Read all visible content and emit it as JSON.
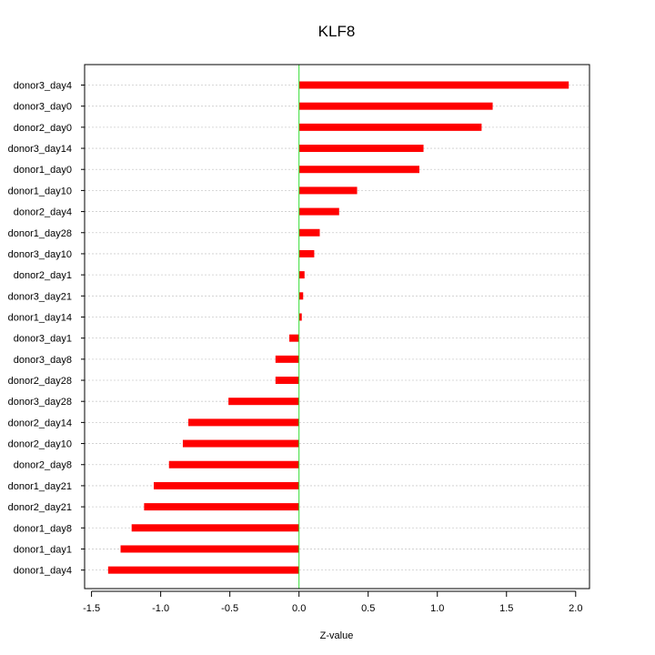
{
  "chart_data": {
    "type": "bar",
    "orientation": "horizontal",
    "title": "KLF8",
    "xlabel": "Z-value",
    "ylabel": "",
    "xlim": [
      -1.55,
      2.1
    ],
    "x_ticks": [
      -1.5,
      -1.0,
      -0.5,
      0.0,
      0.5,
      1.0,
      1.5,
      2.0
    ],
    "x_tick_labels": [
      "-1.5",
      "-1.0",
      "-0.5",
      "0.0",
      "0.5",
      "1.0",
      "1.5",
      "2.0"
    ],
    "grid": "horizontal dotted",
    "categories": [
      "donor3_day4",
      "donor3_day0",
      "donor2_day0",
      "donor3_day14",
      "donor1_day0",
      "donor1_day10",
      "donor2_day4",
      "donor1_day28",
      "donor3_day10",
      "donor2_day1",
      "donor3_day21",
      "donor1_day14",
      "donor3_day1",
      "donor3_day8",
      "donor2_day28",
      "donor3_day28",
      "donor2_day14",
      "donor2_day10",
      "donor2_day8",
      "donor1_day21",
      "donor2_day21",
      "donor1_day8",
      "donor1_day1",
      "donor1_day4"
    ],
    "values": [
      1.95,
      1.4,
      1.32,
      0.9,
      0.87,
      0.42,
      0.29,
      0.15,
      0.11,
      0.04,
      0.03,
      0.02,
      -0.07,
      -0.17,
      -0.17,
      -0.51,
      -0.8,
      -0.84,
      -0.94,
      -1.05,
      -1.12,
      -1.21,
      -1.29,
      -1.38
    ],
    "bar_color": "#ff0000",
    "reference_line": {
      "x": 0.0,
      "color": "#33dd33"
    }
  }
}
